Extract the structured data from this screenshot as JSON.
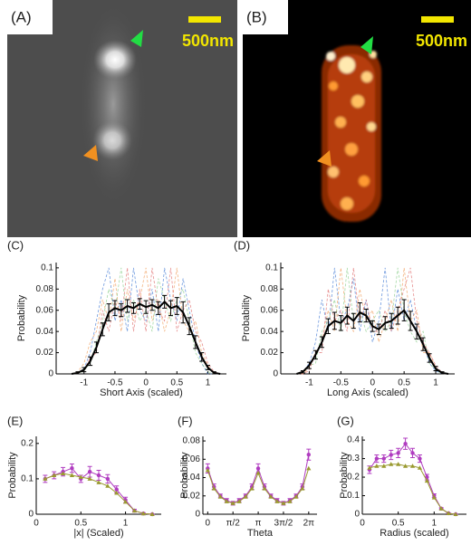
{
  "images": [
    {
      "label": "(A)",
      "scale_bar": "500nm"
    },
    {
      "label": "(B)",
      "scale_bar": "500nm"
    }
  ],
  "chart_data": [
    {
      "type": "line",
      "panel": "(C)",
      "x_label": "Short Axis (scaled)",
      "y_label": "Probability",
      "xlim": [
        -1.45,
        1.3
      ],
      "ylim": [
        0,
        0.105
      ],
      "xticks": [
        -1,
        -0.5,
        0,
        0.5,
        1
      ],
      "yticks": [
        0,
        0.02,
        0.04,
        0.06,
        0.08,
        0.1
      ],
      "x": [
        -1.2,
        -1.1,
        -1,
        -0.9,
        -0.8,
        -0.7,
        -0.6,
        -0.5,
        -0.4,
        -0.3,
        -0.2,
        -0.1,
        0,
        0.1,
        0.2,
        0.3,
        0.4,
        0.5,
        0.6,
        0.7,
        0.8,
        0.9,
        1,
        1.1,
        1.2
      ],
      "traces": [
        {
          "color": "#4a7fd6",
          "values": [
            0,
            0,
            0.005,
            0.02,
            0.05,
            0.08,
            0.1,
            0.05,
            0.07,
            0.04,
            0.1,
            0.06,
            0.05,
            0.08,
            0.04,
            0.1,
            0.07,
            0.05,
            0.09,
            0.06,
            0.03,
            0.01,
            0,
            0,
            0
          ]
        },
        {
          "color": "#f0a060",
          "values": [
            0,
            0.002,
            0.01,
            0.03,
            0.04,
            0.07,
            0.05,
            0.09,
            0.04,
            0.08,
            0.05,
            0.07,
            0.1,
            0.05,
            0.07,
            0.04,
            0.06,
            0.1,
            0.05,
            0.04,
            0.05,
            0.02,
            0.008,
            0,
            0
          ]
        },
        {
          "color": "#8fd08f",
          "values": [
            0,
            0,
            0.003,
            0.01,
            0.03,
            0.05,
            0.08,
            0.06,
            0.1,
            0.05,
            0.07,
            0.05,
            0.06,
            0.04,
            0.09,
            0.07,
            0.05,
            0.07,
            0.08,
            0.05,
            0.02,
            0.01,
            0.002,
            0,
            0
          ]
        },
        {
          "color": "#e07070",
          "values": [
            0,
            0,
            0.004,
            0.015,
            0.02,
            0.06,
            0.04,
            0.07,
            0.05,
            0.1,
            0.04,
            0.08,
            0.04,
            0.1,
            0.06,
            0.05,
            0.1,
            0.04,
            0.06,
            0.07,
            0.04,
            0.03,
            0.01,
            0.002,
            0
          ]
        }
      ],
      "series": [
        {
          "color": "#000000",
          "marker": "none",
          "values": [
            0,
            0.001,
            0.004,
            0.012,
            0.025,
            0.042,
            0.058,
            0.062,
            0.06,
            0.064,
            0.062,
            0.066,
            0.063,
            0.065,
            0.062,
            0.068,
            0.062,
            0.064,
            0.058,
            0.045,
            0.03,
            0.016,
            0.006,
            0.001,
            0
          ],
          "errors": [
            0,
            0.001,
            0.002,
            0.004,
            0.005,
            0.006,
            0.008,
            0.007,
            0.006,
            0.006,
            0.005,
            0.005,
            0.006,
            0.005,
            0.006,
            0.006,
            0.007,
            0.008,
            0.01,
            0.008,
            0.006,
            0.004,
            0.002,
            0.001,
            0
          ]
        }
      ]
    },
    {
      "type": "line",
      "panel": "(D)",
      "x_label": "Long Axis (scaled)",
      "y_label": "Probability",
      "xlim": [
        -1.45,
        1.3
      ],
      "ylim": [
        0,
        0.105
      ],
      "xticks": [
        -1,
        -0.5,
        0,
        0.5,
        1
      ],
      "yticks": [
        0,
        0.02,
        0.04,
        0.06,
        0.08,
        0.1
      ],
      "x": [
        -1.2,
        -1.1,
        -1,
        -0.9,
        -0.8,
        -0.7,
        -0.6,
        -0.5,
        -0.4,
        -0.3,
        -0.2,
        -0.1,
        0,
        0.1,
        0.2,
        0.3,
        0.4,
        0.5,
        0.6,
        0.7,
        0.8,
        0.9,
        1,
        1.1,
        1.2
      ],
      "traces": [
        {
          "color": "#4a7fd6",
          "values": [
            0,
            0.002,
            0.01,
            0.03,
            0.07,
            0.04,
            0.1,
            0.05,
            0.06,
            0.09,
            0.04,
            0.07,
            0.03,
            0.05,
            0.1,
            0.04,
            0.08,
            0.05,
            0.07,
            0.04,
            0.03,
            0.01,
            0.003,
            0,
            0
          ]
        },
        {
          "color": "#f0a060",
          "values": [
            0,
            0,
            0.006,
            0.02,
            0.03,
            0.06,
            0.04,
            0.1,
            0.05,
            0.04,
            0.08,
            0.05,
            0.06,
            0.03,
            0.05,
            0.07,
            0.04,
            0.1,
            0.05,
            0.06,
            0.02,
            0.02,
            0.006,
            0,
            0
          ]
        },
        {
          "color": "#8fd08f",
          "values": [
            0,
            0.001,
            0.008,
            0.01,
            0.04,
            0.05,
            0.07,
            0.04,
            0.1,
            0.05,
            0.06,
            0.04,
            0.05,
            0.06,
            0.04,
            0.05,
            0.1,
            0.06,
            0.04,
            0.03,
            0.04,
            0.01,
            0.004,
            0,
            0
          ]
        },
        {
          "color": "#e07070",
          "values": [
            0,
            0,
            0.003,
            0.02,
            0.02,
            0.08,
            0.05,
            0.06,
            0.04,
            0.1,
            0.05,
            0.07,
            0.04,
            0.04,
            0.06,
            0.04,
            0.06,
            0.08,
            0.1,
            0.05,
            0.03,
            0.02,
            0.008,
            0.001,
            0
          ]
        }
      ],
      "series": [
        {
          "color": "#000000",
          "marker": "none",
          "values": [
            0,
            0.002,
            0.008,
            0.018,
            0.03,
            0.045,
            0.05,
            0.048,
            0.055,
            0.05,
            0.058,
            0.055,
            0.045,
            0.042,
            0.048,
            0.05,
            0.055,
            0.06,
            0.05,
            0.04,
            0.028,
            0.015,
            0.005,
            0.001,
            0
          ],
          "errors": [
            0,
            0.001,
            0.003,
            0.004,
            0.005,
            0.007,
            0.008,
            0.007,
            0.008,
            0.007,
            0.009,
            0.006,
            0.005,
            0.005,
            0.006,
            0.007,
            0.008,
            0.01,
            0.009,
            0.007,
            0.006,
            0.004,
            0.002,
            0.001,
            0
          ]
        }
      ]
    },
    {
      "type": "line",
      "panel": "(E)",
      "x_label": "|x| (Scaled)",
      "y_label": "Probability",
      "xlim": [
        0,
        1.4
      ],
      "ylim": [
        0,
        0.22
      ],
      "xticks": [
        0,
        0.5,
        1
      ],
      "yticks": [
        0,
        0.1,
        0.2
      ],
      "x": [
        0.1,
        0.2,
        0.3,
        0.4,
        0.5,
        0.6,
        0.7,
        0.8,
        0.9,
        1,
        1.1,
        1.2,
        1.3
      ],
      "series": [
        {
          "color": "#b03cc0",
          "marker": "circle",
          "values": [
            0.1,
            0.11,
            0.12,
            0.13,
            0.1,
            0.12,
            0.11,
            0.1,
            0.07,
            0.04,
            0.01,
            0.002,
            0
          ],
          "errors": [
            0.01,
            0.01,
            0.012,
            0.012,
            0.01,
            0.015,
            0.014,
            0.012,
            0.01,
            0.008,
            0.004,
            0.002,
            0
          ]
        },
        {
          "color": "#9a9a30",
          "marker": "triangle",
          "values": [
            0.1,
            0.11,
            0.115,
            0.11,
            0.105,
            0.1,
            0.09,
            0.08,
            0.06,
            0.035,
            0.01,
            0.002,
            0
          ]
        }
      ]
    },
    {
      "type": "line",
      "panel": "(F)",
      "x_label": "Theta",
      "y_label": "Probability",
      "xlim": [
        -0.3,
        6.8
      ],
      "ylim": [
        0,
        0.085
      ],
      "xticks": [
        0,
        {
          "value": 1.5708,
          "label": "π/2"
        },
        {
          "value": 3.1416,
          "label": "π"
        },
        {
          "value": 4.7124,
          "label": "3π/2"
        },
        {
          "value": 6.2832,
          "label": "2π"
        }
      ],
      "yticks": [
        0,
        0.02,
        0.04,
        0.06,
        0.08
      ],
      "x": [
        0,
        0.39,
        0.79,
        1.18,
        1.57,
        1.96,
        2.36,
        2.75,
        3.14,
        3.53,
        3.93,
        4.32,
        4.71,
        5.11,
        5.5,
        5.89,
        6.28
      ],
      "series": [
        {
          "color": "#b03cc0",
          "marker": "circle",
          "values": [
            0.05,
            0.03,
            0.02,
            0.015,
            0.012,
            0.015,
            0.02,
            0.03,
            0.05,
            0.03,
            0.02,
            0.015,
            0.012,
            0.015,
            0.02,
            0.03,
            0.065
          ],
          "errors": [
            0.005,
            0.003,
            0.002,
            0.002,
            0.002,
            0.002,
            0.002,
            0.003,
            0.005,
            0.003,
            0.002,
            0.002,
            0.002,
            0.002,
            0.002,
            0.003,
            0.006
          ]
        },
        {
          "color": "#9a9a30",
          "marker": "triangle",
          "values": [
            0.048,
            0.028,
            0.019,
            0.014,
            0.012,
            0.014,
            0.019,
            0.028,
            0.045,
            0.028,
            0.019,
            0.014,
            0.012,
            0.014,
            0.019,
            0.028,
            0.05
          ]
        }
      ]
    },
    {
      "type": "line",
      "panel": "(G)",
      "x_label": "Radius (scaled)",
      "y_label": "Probability",
      "xlim": [
        0,
        1.45
      ],
      "ylim": [
        0,
        0.42
      ],
      "xticks": [
        0,
        0.5,
        1
      ],
      "yticks": [
        0,
        0.1,
        0.2,
        0.3,
        0.4
      ],
      "x": [
        0.1,
        0.2,
        0.3,
        0.4,
        0.5,
        0.6,
        0.7,
        0.8,
        0.9,
        1,
        1.1,
        1.2,
        1.3
      ],
      "series": [
        {
          "color": "#b03cc0",
          "marker": "circle",
          "values": [
            0.24,
            0.3,
            0.3,
            0.32,
            0.33,
            0.38,
            0.33,
            0.3,
            0.2,
            0.1,
            0.03,
            0.005,
            0
          ],
          "errors": [
            0.02,
            0.02,
            0.02,
            0.025,
            0.025,
            0.03,
            0.025,
            0.02,
            0.015,
            0.01,
            0.005,
            0.002,
            0
          ]
        },
        {
          "color": "#9a9a30",
          "marker": "triangle",
          "values": [
            0.25,
            0.26,
            0.26,
            0.27,
            0.27,
            0.26,
            0.26,
            0.25,
            0.18,
            0.09,
            0.03,
            0.005,
            0
          ]
        }
      ]
    }
  ]
}
